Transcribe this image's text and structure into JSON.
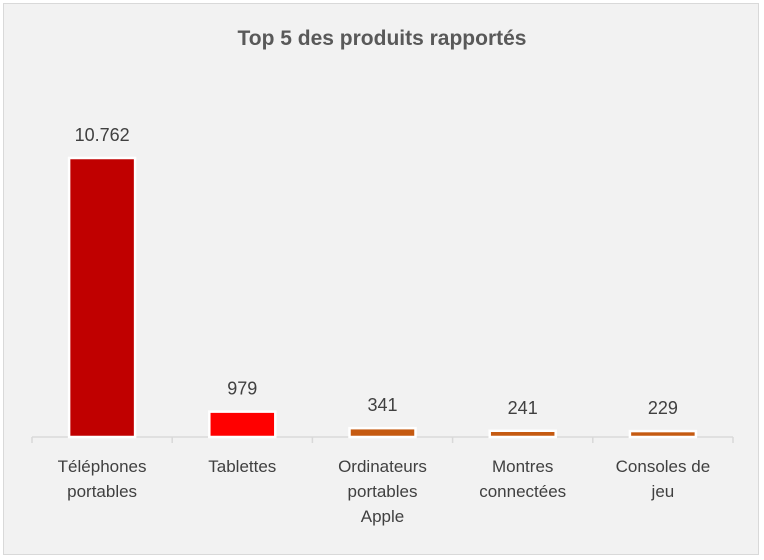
{
  "chart_data": {
    "type": "bar",
    "title": "Top 5 des produits rapportés",
    "categories": [
      [
        "Téléphones",
        "portables"
      ],
      [
        "Tablettes"
      ],
      [
        "Ordinateurs",
        "portables",
        "Apple"
      ],
      [
        "Montres",
        "connectées"
      ],
      [
        "Consoles de",
        "jeu"
      ]
    ],
    "values": [
      10762,
      979,
      341,
      241,
      229
    ],
    "value_labels": [
      "10.762",
      "979",
      "341",
      "241",
      "229"
    ],
    "bar_colors": [
      "#c00000",
      "#ff0000",
      "#c55a11",
      "#c55a11",
      "#c55a11"
    ],
    "ylim": [
      0,
      10762
    ],
    "grid": false,
    "legend": "none"
  }
}
